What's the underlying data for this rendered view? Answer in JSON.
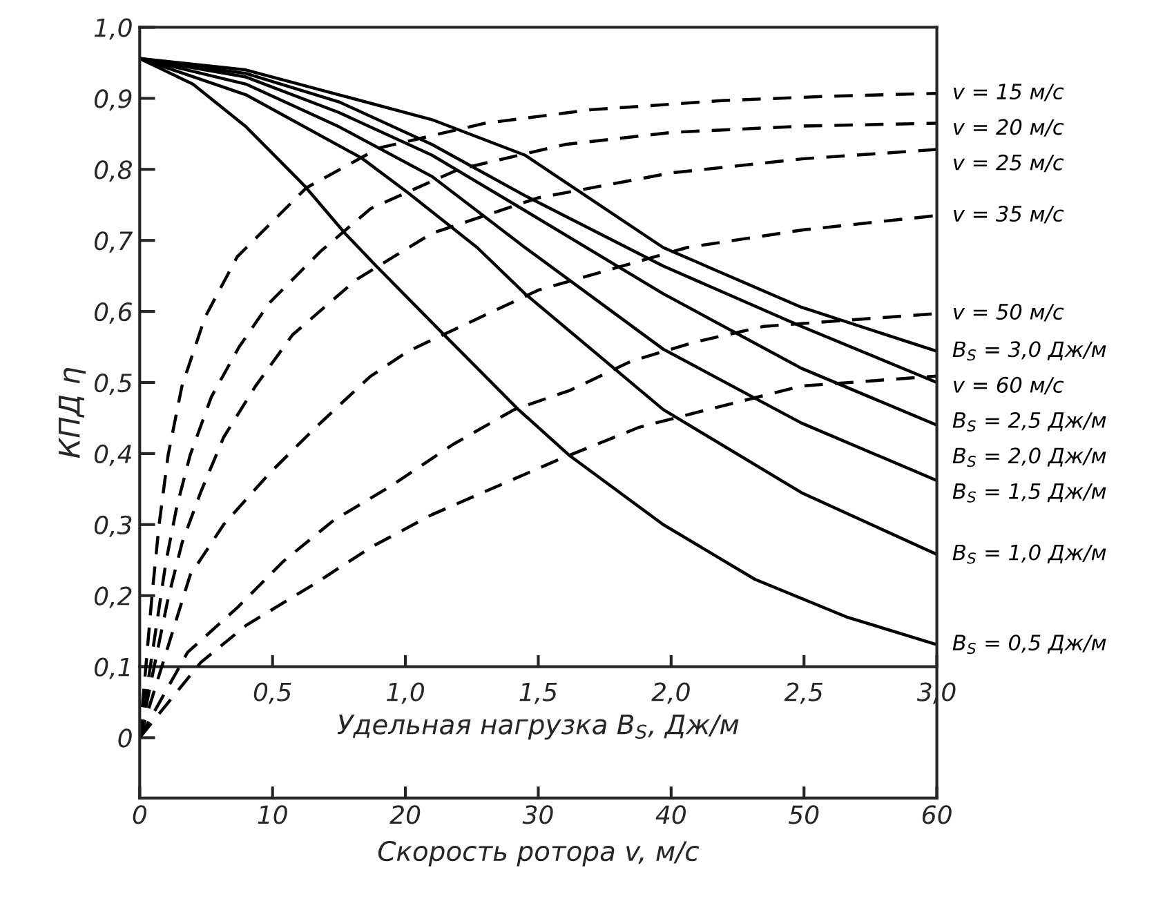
{
  "chart_data": {
    "type": "line",
    "ylabel": "КПД η",
    "xlabel": "Скорость ротора v, м/с",
    "x2label": "Удельная нагрузка B$_{S}$, Дж/м",
    "xlim": [
      0,
      60
    ],
    "xticks": [
      0,
      10,
      20,
      30,
      40,
      50,
      60
    ],
    "x2lim": [
      0,
      3.0
    ],
    "x2ticks": [
      {
        "value": 0.5,
        "label": "0,5"
      },
      {
        "value": 1.0,
        "label": "1,0"
      },
      {
        "value": 1.5,
        "label": "1,5"
      },
      {
        "value": 2.0,
        "label": "2,0"
      },
      {
        "value": 2.5,
        "label": "2,5"
      },
      {
        "value": 3.0,
        "label": "3,0"
      }
    ],
    "ylim": [
      -0.085,
      1.0
    ],
    "yticks": [
      0,
      {
        "value": 0.1,
        "label": "0,1"
      },
      {
        "value": 0.2,
        "label": "0,2"
      },
      {
        "value": 0.3,
        "label": "0,3"
      },
      {
        "value": 0.4,
        "label": "0,4"
      },
      {
        "value": 0.5,
        "label": "0,5"
      },
      {
        "value": 0.6,
        "label": "0,6"
      },
      {
        "value": 0.7,
        "label": "0,7"
      },
      {
        "value": 0.8,
        "label": "0,8"
      },
      {
        "value": 0.9,
        "label": "0,9"
      },
      {
        "value": 1.0,
        "label": "1,0"
      }
    ],
    "grid": false,
    "legend": false,
    "marker": "none",
    "series": [
      {
        "name": "v = 15 м/с",
        "color": "#000000",
        "line_style": "dashed",
        "axis": "x2",
        "x": [
          0,
          0.047,
          0.073,
          0.107,
          0.159,
          0.246,
          0.367,
          0.627,
          0.9,
          1.3,
          1.7,
          2.2,
          2.6,
          3.0
        ],
        "values": [
          0,
          0.203,
          0.3,
          0.398,
          0.495,
          0.592,
          0.677,
          0.774,
          0.83,
          0.865,
          0.884,
          0.897,
          0.903,
          0.907
        ]
      },
      {
        "name": "v = 20 м/с",
        "color": "#000000",
        "line_style": "dashed",
        "axis": "x2",
        "x": [
          0,
          0.099,
          0.14,
          0.19,
          0.27,
          0.374,
          0.488,
          0.679,
          0.87,
          1.2,
          1.6,
          2.0,
          2.5,
          3.0
        ],
        "values": [
          0,
          0.248,
          0.326,
          0.398,
          0.48,
          0.55,
          0.612,
          0.684,
          0.745,
          0.8,
          0.835,
          0.852,
          0.861,
          0.865
        ]
      },
      {
        "name": "v = 25 м/с",
        "color": "#000000",
        "line_style": "dashed",
        "axis": "x2",
        "x": [
          0,
          0.108,
          0.16,
          0.229,
          0.316,
          0.436,
          0.575,
          0.816,
          1.1,
          1.5,
          2.0,
          2.5,
          3.0
        ],
        "values": [
          0,
          0.198,
          0.275,
          0.345,
          0.423,
          0.495,
          0.567,
          0.645,
          0.71,
          0.76,
          0.795,
          0.815,
          0.828
        ]
      },
      {
        "name": "v = 35 м/с",
        "color": "#000000",
        "line_style": "dashed",
        "axis": "x2",
        "x": [
          0,
          0.19,
          0.316,
          0.488,
          0.66,
          0.866,
          1.01,
          1.5,
          2.06,
          2.5,
          3.0
        ],
        "values": [
          0,
          0.229,
          0.3,
          0.372,
          0.436,
          0.508,
          0.544,
          0.63,
          0.69,
          0.715,
          0.735
        ]
      },
      {
        "name": "v = 50 м/с",
        "color": "#000000",
        "line_style": "dashed",
        "axis": "x2",
        "x": [
          0,
          0.18,
          0.37,
          0.54,
          0.73,
          0.94,
          1.18,
          1.41,
          1.62,
          1.85,
          2.09,
          2.35,
          3.0
        ],
        "values": [
          0,
          0.12,
          0.184,
          0.248,
          0.306,
          0.353,
          0.413,
          0.462,
          0.489,
          0.53,
          0.557,
          0.579,
          0.597
        ]
      },
      {
        "name": "v = 60 м/с",
        "color": "#000000",
        "line_style": "dashed",
        "axis": "x2",
        "x": [
          0,
          0.23,
          0.4,
          0.66,
          0.87,
          1.1,
          1.58,
          1.88,
          2.14,
          2.49,
          3.0
        ],
        "values": [
          0,
          0.106,
          0.158,
          0.217,
          0.268,
          0.314,
          0.392,
          0.437,
          0.462,
          0.495,
          0.509
        ]
      },
      {
        "name": "B$_{S}$ = 3,0 Дж/м",
        "color": "#000000",
        "line_style": "solid",
        "x": [
          0,
          8,
          15,
          22,
          29,
          39.4,
          49.8,
          60
        ],
        "values": [
          0.956,
          0.94,
          0.905,
          0.87,
          0.82,
          0.69,
          0.606,
          0.544
        ]
      },
      {
        "name": "B$_{S}$ = 2,5 Дж/м",
        "color": "#000000",
        "line_style": "solid",
        "x": [
          0,
          8,
          15,
          22,
          29,
          39.4,
          49.8,
          60
        ],
        "values": [
          0.956,
          0.935,
          0.895,
          0.835,
          0.763,
          0.664,
          0.579,
          0.5
        ]
      },
      {
        "name": "B$_{S}$ = 2,0 Дж/м",
        "color": "#000000",
        "line_style": "solid",
        "x": [
          0,
          8,
          15,
          22,
          29,
          39.4,
          49.8,
          60
        ],
        "values": [
          0.956,
          0.93,
          0.88,
          0.82,
          0.742,
          0.625,
          0.52,
          0.44
        ]
      },
      {
        "name": "B$_{S}$ = 1,5 Дж/м",
        "color": "#000000",
        "line_style": "solid",
        "x": [
          0,
          8,
          15,
          22,
          29,
          39.4,
          49.8,
          60
        ],
        "values": [
          0.956,
          0.92,
          0.86,
          0.79,
          0.69,
          0.547,
          0.443,
          0.362
        ]
      },
      {
        "name": "B$_{S}$ = 1,0 Дж/м",
        "color": "#000000",
        "line_style": "solid",
        "x": [
          0,
          8,
          16.7,
          20.2,
          25.4,
          29,
          39.4,
          49.8,
          60
        ],
        "values": [
          0.956,
          0.905,
          0.816,
          0.767,
          0.69,
          0.625,
          0.462,
          0.345,
          0.258
        ]
      },
      {
        "name": "B$_{S}$ = 0,5 Дж/м",
        "color": "#000000",
        "line_style": "solid",
        "x": [
          0,
          4,
          8,
          12.4,
          15.5,
          17.8,
          22.6,
          28.5,
          32.3,
          39.4,
          46.3,
          53.2,
          60
        ],
        "values": [
          0.956,
          0.92,
          0.86,
          0.777,
          0.709,
          0.664,
          0.573,
          0.462,
          0.398,
          0.3,
          0.223,
          0.17,
          0.131
        ]
      }
    ]
  }
}
